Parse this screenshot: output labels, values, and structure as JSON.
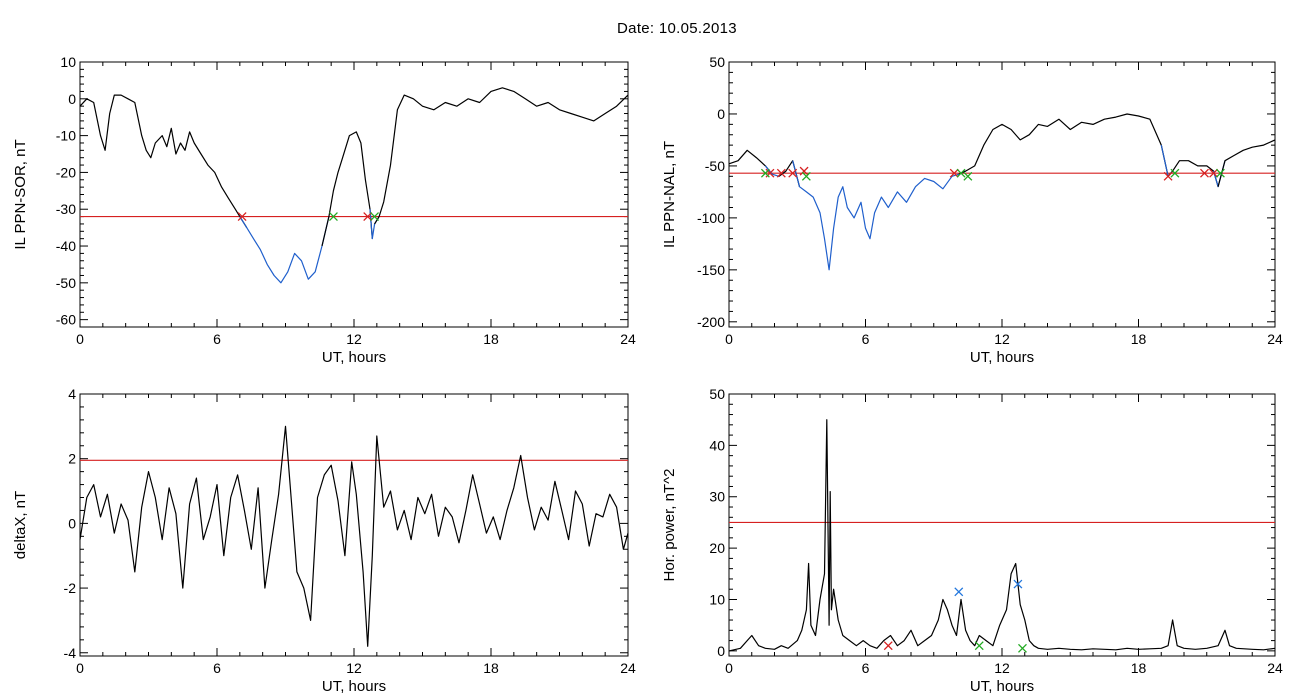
{
  "page": {
    "title": "Date:  10.05.2013"
  },
  "colors": {
    "baseline": "#000000",
    "highlight": "#1f5fcc",
    "threshold": "#d62020",
    "marker_red": "#d62020",
    "marker_green": "#22aa22",
    "marker_blue": "#2277dd"
  },
  "chart_data": [
    {
      "id": "il-ppn-sor",
      "type": "line",
      "xlabel": "UT, hours",
      "ylabel": "IL PPN-SOR, nT",
      "xlim": [
        0,
        24
      ],
      "ylim": [
        -62,
        10
      ],
      "xticks": [
        0,
        6,
        12,
        18,
        24
      ],
      "yticks": [
        10,
        0,
        -10,
        -20,
        -30,
        -40,
        -50,
        -60
      ],
      "threshold": -32,
      "highlight_below_threshold": true,
      "series": [
        {
          "x": [
            0,
            0.3,
            0.6,
            0.9,
            1.1,
            1.3,
            1.5,
            1.8,
            2.1,
            2.4,
            2.7,
            2.9,
            3.1,
            3.3,
            3.6,
            3.8,
            4.0,
            4.2,
            4.4,
            4.6,
            4.8,
            5.0,
            5.3,
            5.6,
            5.9,
            6.2,
            6.5,
            6.8,
            7.0,
            7.3,
            7.6,
            7.9,
            8.2,
            8.5,
            8.8,
            9.1,
            9.4,
            9.7,
            10.0,
            10.3,
            10.6,
            10.9,
            11.1,
            11.3,
            11.5,
            11.8,
            12.1,
            12.3,
            12.5,
            12.7,
            12.8,
            12.9,
            13.1,
            13.3,
            13.6,
            13.9,
            14.2,
            14.6,
            15.0,
            15.5,
            16.0,
            16.5,
            17.0,
            17.5,
            18.0,
            18.5,
            19.0,
            19.5,
            20.0,
            20.5,
            21.0,
            21.5,
            22.0,
            22.5,
            23.0,
            23.5,
            24.0
          ],
          "y": [
            -2,
            0,
            -1,
            -10,
            -14,
            -4,
            1,
            1,
            0,
            -1,
            -10,
            -14,
            -16,
            -12,
            -10,
            -13,
            -8,
            -15,
            -12,
            -14,
            -9,
            -12,
            -15,
            -18,
            -20,
            -24,
            -27,
            -30,
            -32,
            -35,
            -38,
            -41,
            -45,
            -48,
            -50,
            -47,
            -42,
            -44,
            -49,
            -47,
            -40,
            -32,
            -25,
            -20,
            -16,
            -10,
            -9,
            -12,
            -22,
            -30,
            -38,
            -34,
            -32,
            -28,
            -18,
            -3,
            1,
            0,
            -2,
            -3,
            -1,
            -2,
            0,
            -1,
            2,
            3,
            2,
            0,
            -2,
            -1,
            -3,
            -4,
            -5,
            -6,
            -4,
            -2,
            1
          ]
        }
      ],
      "markers": [
        {
          "x": 7.1,
          "y": -32,
          "color": "red"
        },
        {
          "x": 11.1,
          "y": -32,
          "color": "green"
        },
        {
          "x": 12.6,
          "y": -32,
          "color": "red"
        },
        {
          "x": 12.9,
          "y": -32,
          "color": "green"
        }
      ]
    },
    {
      "id": "il-ppn-nal",
      "type": "line",
      "xlabel": "UT, hours",
      "ylabel": "IL PPN-NAL, nT",
      "xlim": [
        0,
        24
      ],
      "ylim": [
        -205,
        50
      ],
      "xticks": [
        0,
        6,
        12,
        18,
        24
      ],
      "yticks": [
        50,
        0,
        -50,
        -100,
        -150,
        -200
      ],
      "threshold": -57,
      "highlight_below_threshold": true,
      "series": [
        {
          "x": [
            0,
            0.4,
            0.8,
            1.2,
            1.6,
            1.9,
            2.2,
            2.5,
            2.8,
            3.1,
            3.4,
            3.7,
            4.0,
            4.2,
            4.4,
            4.6,
            4.8,
            5.0,
            5.2,
            5.5,
            5.8,
            6.0,
            6.2,
            6.4,
            6.7,
            7.0,
            7.4,
            7.8,
            8.2,
            8.6,
            9.0,
            9.4,
            9.8,
            10.1,
            10.4,
            10.8,
            11.2,
            11.6,
            12.0,
            12.4,
            12.8,
            13.2,
            13.6,
            14.0,
            14.5,
            15.0,
            15.5,
            16.0,
            16.5,
            17.0,
            17.5,
            18.0,
            18.5,
            19.0,
            19.3,
            19.5,
            19.8,
            20.2,
            20.6,
            21.0,
            21.3,
            21.5,
            21.8,
            22.2,
            22.6,
            23.0,
            23.5,
            24.0
          ],
          "y": [
            -48,
            -45,
            -35,
            -42,
            -50,
            -58,
            -60,
            -55,
            -45,
            -70,
            -75,
            -80,
            -95,
            -120,
            -150,
            -110,
            -80,
            -70,
            -90,
            -100,
            -85,
            -110,
            -120,
            -95,
            -80,
            -90,
            -75,
            -85,
            -70,
            -62,
            -65,
            -72,
            -60,
            -58,
            -55,
            -50,
            -30,
            -15,
            -10,
            -15,
            -25,
            -20,
            -10,
            -12,
            -5,
            -15,
            -8,
            -10,
            -5,
            -3,
            0,
            -2,
            -5,
            -30,
            -60,
            -55,
            -45,
            -45,
            -50,
            -50,
            -55,
            -70,
            -45,
            -40,
            -35,
            -32,
            -30,
            -25
          ]
        }
      ],
      "markers": [
        {
          "x": 1.8,
          "y": -57,
          "color": "red"
        },
        {
          "x": 2.3,
          "y": -57,
          "color": "red"
        },
        {
          "x": 2.8,
          "y": -57,
          "color": "red"
        },
        {
          "x": 3.3,
          "y": -55,
          "color": "red"
        },
        {
          "x": 1.6,
          "y": -57,
          "color": "green"
        },
        {
          "x": 3.4,
          "y": -60,
          "color": "green"
        },
        {
          "x": 9.9,
          "y": -57,
          "color": "red"
        },
        {
          "x": 10.2,
          "y": -57,
          "color": "green"
        },
        {
          "x": 10.5,
          "y": -60,
          "color": "green"
        },
        {
          "x": 19.3,
          "y": -60,
          "color": "red"
        },
        {
          "x": 19.6,
          "y": -57,
          "color": "green"
        },
        {
          "x": 20.9,
          "y": -57,
          "color": "red"
        },
        {
          "x": 21.3,
          "y": -57,
          "color": "red"
        },
        {
          "x": 21.6,
          "y": -57,
          "color": "green"
        }
      ]
    },
    {
      "id": "deltax",
      "type": "line",
      "xlabel": "UT, hours",
      "ylabel": "deltaX, nT",
      "xlim": [
        0,
        24
      ],
      "ylim": [
        -4.1,
        4
      ],
      "xticks": [
        0,
        6,
        12,
        18,
        24
      ],
      "yticks": [
        4,
        2,
        0,
        -2,
        -4
      ],
      "threshold": 1.95,
      "highlight_below_threshold": false,
      "series": [
        {
          "x": [
            0,
            0.3,
            0.6,
            0.9,
            1.2,
            1.5,
            1.8,
            2.1,
            2.4,
            2.7,
            3.0,
            3.3,
            3.6,
            3.9,
            4.2,
            4.5,
            4.8,
            5.1,
            5.4,
            5.7,
            6.0,
            6.3,
            6.6,
            6.9,
            7.2,
            7.5,
            7.8,
            8.1,
            8.4,
            8.7,
            9.0,
            9.2,
            9.5,
            9.8,
            10.1,
            10.4,
            10.7,
            11.0,
            11.3,
            11.6,
            11.9,
            12.1,
            12.4,
            12.6,
            12.8,
            13.0,
            13.3,
            13.6,
            13.9,
            14.2,
            14.5,
            14.8,
            15.1,
            15.4,
            15.7,
            16.0,
            16.3,
            16.6,
            16.9,
            17.2,
            17.5,
            17.8,
            18.1,
            18.4,
            18.7,
            19.0,
            19.3,
            19.6,
            19.9,
            20.2,
            20.5,
            20.8,
            21.1,
            21.4,
            21.7,
            22.0,
            22.3,
            22.6,
            22.9,
            23.2,
            23.5,
            23.8,
            24.0
          ],
          "y": [
            -0.5,
            0.8,
            1.2,
            0.2,
            0.9,
            -0.3,
            0.6,
            0.1,
            -1.5,
            0.5,
            1.6,
            0.8,
            -0.5,
            1.1,
            0.3,
            -2.0,
            0.6,
            1.4,
            -0.5,
            0.2,
            1.2,
            -1.0,
            0.8,
            1.5,
            0.4,
            -0.8,
            1.1,
            -2.0,
            -0.5,
            0.9,
            3.0,
            1.2,
            -1.5,
            -2.0,
            -3.0,
            0.8,
            1.5,
            1.8,
            0.7,
            -1.0,
            1.9,
            0.9,
            -1.5,
            -3.8,
            -1.0,
            2.7,
            0.5,
            1.0,
            -0.2,
            0.4,
            -0.5,
            0.8,
            0.3,
            0.9,
            -0.4,
            0.5,
            0.2,
            -0.6,
            0.4,
            1.5,
            0.6,
            -0.3,
            0.2,
            -0.5,
            0.4,
            1.1,
            2.1,
            0.8,
            -0.2,
            0.5,
            0.1,
            1.3,
            0.4,
            -0.5,
            1.0,
            0.6,
            -0.7,
            0.3,
            0.2,
            0.9,
            0.5,
            -0.8,
            -0.3
          ]
        }
      ],
      "markers": []
    },
    {
      "id": "hor-power",
      "type": "line",
      "xlabel": "UT, hours",
      "ylabel": "Hor. power, nT^2",
      "xlim": [
        0,
        24
      ],
      "ylim": [
        -1,
        50
      ],
      "xticks": [
        0,
        6,
        12,
        18,
        24
      ],
      "yticks": [
        50,
        40,
        30,
        20,
        10,
        0
      ],
      "threshold": 25,
      "highlight_below_threshold": false,
      "series": [
        {
          "x": [
            0,
            0.5,
            0.8,
            1.0,
            1.3,
            1.6,
            2.0,
            2.3,
            2.6,
            3.0,
            3.2,
            3.4,
            3.5,
            3.6,
            3.8,
            4.0,
            4.2,
            4.3,
            4.4,
            4.45,
            4.5,
            4.6,
            4.8,
            5.0,
            5.3,
            5.6,
            5.9,
            6.2,
            6.5,
            6.8,
            7.1,
            7.4,
            7.7,
            8.0,
            8.3,
            8.6,
            8.9,
            9.2,
            9.4,
            9.6,
            9.8,
            10.0,
            10.2,
            10.4,
            10.6,
            10.8,
            11.0,
            11.3,
            11.6,
            11.9,
            12.2,
            12.4,
            12.6,
            12.8,
            13.0,
            13.2,
            13.4,
            13.6,
            14.0,
            14.5,
            15.0,
            15.5,
            16.0,
            16.5,
            17.0,
            17.5,
            18.0,
            18.5,
            19.0,
            19.3,
            19.5,
            19.7,
            20.0,
            20.5,
            21.0,
            21.5,
            21.8,
            22.0,
            22.3,
            23.0,
            23.5,
            24.0
          ],
          "y": [
            0,
            0.5,
            2,
            3,
            1,
            0.5,
            0.3,
            1,
            0.5,
            2,
            4,
            8,
            17,
            5,
            3,
            10,
            15,
            45,
            5,
            31,
            8,
            12,
            6,
            3,
            2,
            1,
            2,
            1,
            0.5,
            2,
            3,
            1,
            2,
            4,
            1,
            2,
            3,
            6,
            10,
            8,
            5,
            3,
            10,
            4,
            2,
            1,
            3,
            2,
            1,
            5,
            8,
            15,
            17,
            9,
            6,
            2,
            1,
            0.5,
            0.3,
            0.5,
            0.3,
            0.2,
            0.4,
            0.3,
            0.2,
            0.5,
            0.3,
            0.4,
            0.5,
            1,
            6,
            1,
            0.5,
            0.3,
            0.5,
            1,
            4,
            1,
            0.5,
            0.3,
            0.2,
            0.5
          ]
        }
      ],
      "markers": [
        {
          "x": 10.1,
          "y": 11.5,
          "color": "blue"
        },
        {
          "x": 12.7,
          "y": 13,
          "color": "blue"
        },
        {
          "x": 7.0,
          "y": 1,
          "color": "red"
        },
        {
          "x": 11.0,
          "y": 1,
          "color": "green"
        },
        {
          "x": 12.9,
          "y": 0.5,
          "color": "green"
        }
      ]
    }
  ]
}
